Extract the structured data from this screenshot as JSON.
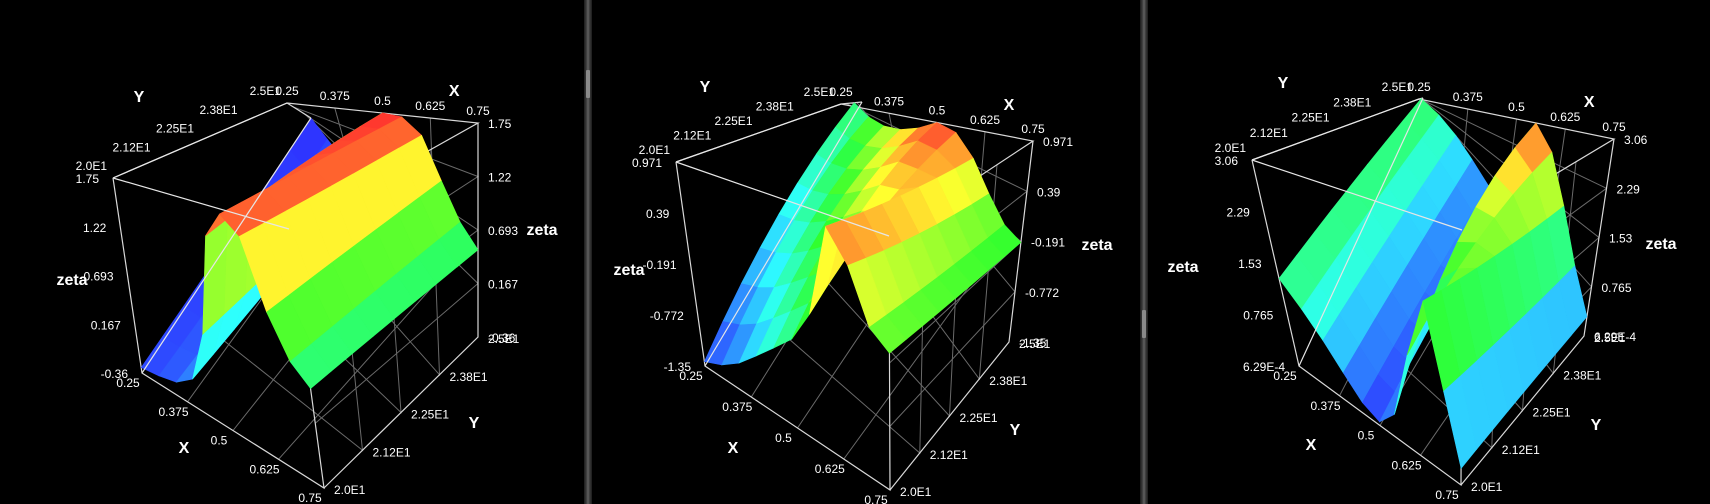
{
  "chart_data": [
    {
      "type": "surface",
      "xlabel": "X",
      "ylabel": "Y",
      "zlabel": "zeta",
      "xlim": [
        0.25,
        0.75
      ],
      "ylim": [
        20.0,
        25.0
      ],
      "zlim": [
        -0.36,
        1.75
      ],
      "x_ticks": [
        "0.25",
        "0.375",
        "0.5",
        "0.625",
        "0.75"
      ],
      "y_ticks": [
        "2.0E1",
        "2.12E1",
        "2.25E1",
        "2.38E1",
        "2.5E1"
      ],
      "z_ticks": [
        "-0.36",
        "0.167",
        "0.693",
        "1.22",
        "1.75"
      ],
      "colormap": [
        "#0000ff",
        "#00ffff",
        "#00ff00",
        "#ffff00",
        "#ff0000"
      ],
      "surface": {
        "x": [
          0.25,
          0.3,
          0.35,
          0.4,
          0.45,
          0.5,
          0.55,
          0.6,
          0.65,
          0.7,
          0.75
        ],
        "zeta_low_y": [
          -0.3,
          -0.27,
          -0.22,
          -0.08,
          0.45,
          1.45,
          1.7,
          1.55,
          0.95,
          0.6,
          0.45
        ],
        "zeta_high_y": [
          -0.36,
          -0.33,
          -0.28,
          -0.15,
          0.4,
          1.75,
          1.72,
          1.5,
          1.0,
          0.65,
          0.5
        ]
      }
    },
    {
      "type": "surface",
      "xlabel": "X",
      "ylabel": "Y",
      "zlabel": "zeta",
      "xlim": [
        0.25,
        0.75
      ],
      "ylim": [
        20.0,
        25.0
      ],
      "zlim": [
        -1.35,
        0.971
      ],
      "x_ticks": [
        "0.25",
        "0.375",
        "0.5",
        "0.625",
        "0.75"
      ],
      "y_ticks": [
        "2.0E1",
        "2.12E1",
        "2.25E1",
        "2.38E1",
        "2.5E1"
      ],
      "z_ticks": [
        "-1.35",
        "-0.772",
        "-0.191",
        "0.39",
        "0.971"
      ],
      "colormap": [
        "#0000ff",
        "#00ffff",
        "#00ff00",
        "#ffff00",
        "#ff0000"
      ],
      "surface": {
        "x": [
          0.25,
          0.3,
          0.35,
          0.4,
          0.45,
          0.5,
          0.55,
          0.6,
          0.65,
          0.7,
          0.75
        ],
        "zeta_low_y": [
          -1.3,
          -1.2,
          -1.05,
          -0.85,
          -0.65,
          -0.45,
          -0.1,
          0.85,
          0.55,
          0.05,
          -0.1
        ],
        "zeta_high_y": [
          -0.5,
          -0.2,
          0.1,
          0.4,
          0.7,
          0.971,
          0.85,
          0.5,
          0.1,
          -0.15,
          -0.2
        ]
      }
    },
    {
      "type": "surface",
      "xlabel": "X",
      "ylabel": "Y",
      "zlabel": "zeta",
      "xlim": [
        0.25,
        0.75
      ],
      "ylim": [
        20.0,
        25.0
      ],
      "zlim": [
        0.000629,
        3.06
      ],
      "x_ticks": [
        "0.25",
        "0.375",
        "0.5",
        "0.625",
        "0.75"
      ],
      "y_ticks": [
        "2.0E1",
        "2.12E1",
        "2.25E1",
        "2.38E1",
        "2.5E1"
      ],
      "z_ticks": [
        "6.29E-4",
        "0.765",
        "1.53",
        "2.29",
        "3.06"
      ],
      "colormap": [
        "#0000ff",
        "#00ffff",
        "#00ff00",
        "#ffff00",
        "#ff0000"
      ],
      "surface": {
        "x": [
          0.25,
          0.3,
          0.35,
          0.4,
          0.45,
          0.5,
          0.55,
          0.6,
          0.65,
          0.7,
          0.75
        ],
        "zeta_low_y": [
          1.3,
          1.0,
          0.7,
          0.4,
          0.15,
          0.05,
          0.3,
          1.2,
          2.0,
          1.0,
          0.2
        ],
        "zeta_high_y": [
          1.4,
          1.1,
          0.8,
          0.5,
          0.3,
          0.5,
          3.06,
          2.5,
          1.6,
          0.8,
          0.3
        ]
      }
    }
  ]
}
